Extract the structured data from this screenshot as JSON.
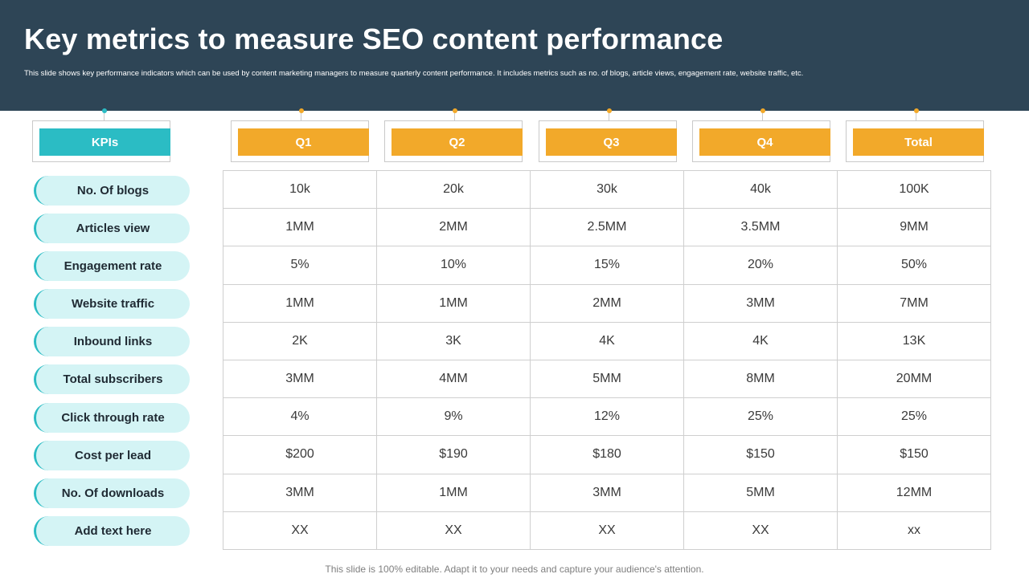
{
  "title": "Key metrics to measure SEO content performance",
  "subtitle": "This slide shows key performance indicators which can be used by content marketing managers to measure quarterly content performance. It includes metrics such as no. of blogs, article views, engagement rate, website traffic, etc.",
  "headers": {
    "kpi": "KPIs",
    "q1": "Q1",
    "q2": "Q2",
    "q3": "Q3",
    "q4": "Q4",
    "total": "Total"
  },
  "rows": [
    {
      "kpi": "No. Of blogs",
      "q1": "10k",
      "q2": "20k",
      "q3": "30k",
      "q4": "40k",
      "total": "100K"
    },
    {
      "kpi": "Articles view",
      "q1": "1MM",
      "q2": "2MM",
      "q3": "2.5MM",
      "q4": "3.5MM",
      "total": "9MM"
    },
    {
      "kpi": "Engagement rate",
      "q1": "5%",
      "q2": "10%",
      "q3": "15%",
      "q4": "20%",
      "total": "50%"
    },
    {
      "kpi": "Website traffic",
      "q1": "1MM",
      "q2": "1MM",
      "q3": "2MM",
      "q4": "3MM",
      "total": "7MM"
    },
    {
      "kpi": "Inbound links",
      "q1": "2K",
      "q2": "3K",
      "q3": "4K",
      "q4": "4K",
      "total": "13K"
    },
    {
      "kpi": "Total subscribers",
      "q1": "3MM",
      "q2": "4MM",
      "q3": "5MM",
      "q4": "8MM",
      "total": "20MM"
    },
    {
      "kpi": "Click through rate",
      "q1": "4%",
      "q2": "9%",
      "q3": "12%",
      "q4": "25%",
      "total": "25%"
    },
    {
      "kpi": "Cost per lead",
      "q1": "$200",
      "q2": "$190",
      "q3": "$180",
      "q4": "$150",
      "total": "$150"
    },
    {
      "kpi": "No. Of downloads",
      "q1": "3MM",
      "q2": "1MM",
      "q3": "3MM",
      "q4": "5MM",
      "total": "12MM"
    },
    {
      "kpi": "Add text here",
      "q1": "XX",
      "q2": "XX",
      "q3": "XX",
      "q4": "XX",
      "total": "xx"
    }
  ],
  "footer": "This slide is 100% editable. Adapt it to your needs and capture your audience's attention.",
  "colors": {
    "header_bg": "#2e4556",
    "kpi_accent": "#2bbcc4",
    "quarter_accent": "#f2a92a",
    "pill_bg": "#d4f4f5"
  }
}
